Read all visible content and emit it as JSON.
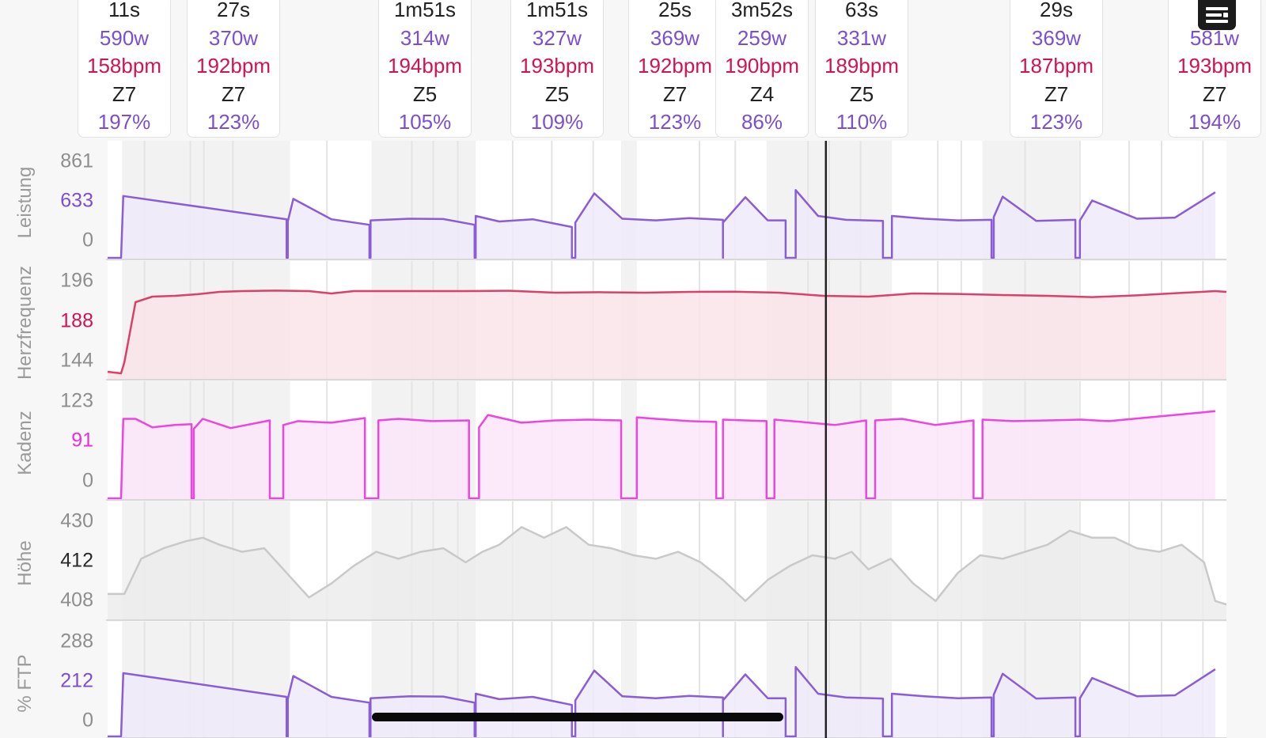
{
  "colors": {
    "power": "#8a5cd6",
    "heart_rate": "#d9406b",
    "cadence": "#ee44e0",
    "elevation": "#c9c9c9",
    "ftp": "#8a5cd6",
    "cursor": "#222222"
  },
  "interval_cards": [
    {
      "duration": "11s",
      "power": "590w",
      "heart_rate": "158bpm",
      "zone": "Z7",
      "ftp_percent": "197%"
    },
    {
      "duration": "27s",
      "power": "370w",
      "heart_rate": "192bpm",
      "zone": "Z7",
      "ftp_percent": "123%"
    },
    {
      "duration": "1m51s",
      "power": "314w",
      "heart_rate": "194bpm",
      "zone": "Z5",
      "ftp_percent": "105%"
    },
    {
      "duration": "1m51s",
      "power": "327w",
      "heart_rate": "193bpm",
      "zone": "Z5",
      "ftp_percent": "109%"
    },
    {
      "duration": "25s",
      "power": "369w",
      "heart_rate": "192bpm",
      "zone": "Z7",
      "ftp_percent": "123%"
    },
    {
      "duration": "3m52s",
      "power": "259w",
      "heart_rate": "190bpm",
      "zone": "Z4",
      "ftp_percent": "86%"
    },
    {
      "duration": "63s",
      "power": "331w",
      "heart_rate": "189bpm",
      "zone": "Z5",
      "ftp_percent": "110%"
    },
    {
      "duration": "29s",
      "power": "369w",
      "heart_rate": "187bpm",
      "zone": "Z7",
      "ftp_percent": "123%"
    },
    {
      "duration": "581w",
      "power": "",
      "heart_rate": "193bpm",
      "zone": "Z7",
      "ftp_percent": "194%"
    }
  ],
  "menu_icon": "list-menu-icon",
  "chart_data": [
    {
      "type": "area",
      "ylabel": "Leistung",
      "tick_labels": [
        "861",
        "633",
        "0"
      ],
      "ylim": [
        0,
        861
      ],
      "cursor_value": "633",
      "x_range": [
        0,
        100
      ],
      "segments": [
        {
          "x": [
            0,
            1.2,
            1.4,
            16
          ],
          "y": [
            0,
            0,
            561,
            350
          ]
        },
        {
          "x": [
            16.1,
            16.6,
            20,
            23.4
          ],
          "y": [
            330,
            535,
            350,
            300
          ]
        },
        {
          "x": [
            23.5,
            27,
            30,
            32.8
          ],
          "y": [
            340,
            355,
            352,
            300
          ]
        },
        {
          "x": [
            32.9,
            35,
            38,
            41.5
          ],
          "y": [
            380,
            330,
            350,
            280
          ]
        },
        {
          "x": [
            41.8,
            43.5,
            46,
            49,
            52,
            55
          ],
          "y": [
            320,
            585,
            355,
            340,
            360,
            345
          ]
        },
        {
          "x": [
            55,
            57,
            59,
            60.6
          ],
          "y": [
            320,
            550,
            340,
            340
          ]
        },
        {
          "x": [
            61.5,
            63.5,
            66,
            69.3
          ],
          "y": [
            615,
            380,
            345,
            335
          ]
        },
        {
          "x": [
            70.1,
            73,
            76,
            79
          ],
          "y": [
            380,
            355,
            340,
            345
          ]
        },
        {
          "x": [
            79.2,
            80,
            83,
            86.5
          ],
          "y": [
            370,
            555,
            335,
            345
          ]
        },
        {
          "x": [
            86.9,
            88,
            92,
            95.4,
            99
          ],
          "y": [
            340,
            520,
            355,
            365,
            595
          ]
        }
      ]
    },
    {
      "type": "area",
      "ylabel": "Herzfrequenz",
      "tick_labels": [
        "196",
        "188",
        "144"
      ],
      "ylim": [
        140,
        200
      ],
      "cursor_value": "188",
      "x_range": [
        0,
        100
      ],
      "x": [
        0,
        1.2,
        1.5,
        2.5,
        4,
        6,
        8,
        10,
        12,
        15,
        18,
        20,
        22,
        25,
        28,
        32,
        36,
        40,
        44,
        48,
        52,
        56,
        60,
        64,
        68,
        72,
        76,
        80,
        84,
        88,
        92,
        95,
        99,
        100
      ],
      "y": [
        144,
        143,
        150,
        188,
        191.5,
        192,
        193,
        194.5,
        195,
        195.3,
        195,
        193.5,
        195,
        195,
        195,
        195,
        195.2,
        194,
        194.3,
        194,
        194.5,
        194.6,
        194,
        192,
        191.5,
        193.5,
        193.2,
        192.5,
        192,
        191.2,
        192.3,
        193.5,
        195,
        194.5
      ]
    },
    {
      "type": "area",
      "ylabel": "Kadenz",
      "tick_labels": [
        "123",
        "91",
        "0"
      ],
      "ylim": [
        0,
        123
      ],
      "cursor_value": "91",
      "x_range": [
        0,
        100
      ],
      "segments": [
        {
          "x": [
            0,
            1.2,
            1.4,
            2.5,
            4,
            6,
            7.5
          ],
          "y": [
            0,
            0,
            103,
            103,
            92,
            95,
            96
          ]
        },
        {
          "x": [
            7.7,
            8.5,
            11,
            14.5
          ],
          "y": [
            90,
            103,
            91,
            101
          ]
        },
        {
          "x": [
            15.7,
            17,
            20,
            23
          ],
          "y": [
            95,
            100,
            98,
            104
          ]
        },
        {
          "x": [
            24.2,
            26,
            29,
            32.3
          ],
          "y": [
            101,
            103,
            100,
            101
          ]
        },
        {
          "x": [
            33.2,
            34,
            37,
            40,
            43,
            45.9
          ],
          "y": [
            92,
            108,
            98,
            101,
            102,
            101
          ]
        },
        {
          "x": [
            47.3,
            49,
            52,
            54.4
          ],
          "y": [
            105,
            103,
            100,
            99
          ]
        },
        {
          "x": [
            55,
            57,
            58.9
          ],
          "y": [
            102,
            101,
            100
          ]
        },
        {
          "x": [
            59.6,
            62,
            65,
            67.8
          ],
          "y": [
            102,
            99,
            95,
            101
          ]
        },
        {
          "x": [
            68.6,
            71,
            74,
            77.4
          ],
          "y": [
            101,
            103,
            95,
            101
          ]
        },
        {
          "x": [
            78.2,
            81,
            84,
            87,
            89.5,
            99
          ],
          "y": [
            102,
            100,
            101,
            102,
            100,
            113
          ]
        }
      ]
    },
    {
      "type": "area",
      "ylabel": "Höhe",
      "tick_labels": [
        "430",
        "412",
        "408"
      ],
      "ylim": [
        405,
        432
      ],
      "cursor_value": "412",
      "x_range": [
        0,
        100
      ],
      "x": [
        0,
        1.5,
        3,
        5,
        7,
        8.5,
        10,
        12,
        14,
        16,
        18,
        20,
        22,
        24,
        26,
        28,
        30,
        32,
        33.5,
        35,
        37,
        39,
        41,
        43,
        45,
        47,
        49,
        51,
        53,
        55,
        57,
        59,
        61,
        63,
        65,
        66.5,
        68,
        70,
        72,
        74,
        76,
        78,
        80,
        82,
        84,
        86,
        88,
        90,
        92,
        94,
        96,
        98,
        99,
        100
      ],
      "y": [
        412,
        412,
        422,
        425,
        427,
        428,
        426,
        424,
        425,
        418,
        411,
        415,
        420,
        424,
        422,
        424,
        425,
        421,
        424,
        426,
        431,
        428,
        431,
        426,
        425,
        423,
        422,
        424,
        421,
        416,
        410,
        416,
        420,
        423,
        422,
        424,
        419,
        422,
        415,
        410,
        418,
        423,
        422,
        424,
        426,
        430,
        428,
        428,
        425,
        424,
        426,
        421,
        410,
        409
      ]
    },
    {
      "type": "area",
      "ylabel": "% FTP",
      "tick_labels": [
        "288",
        "212",
        "0"
      ],
      "ylim": [
        0,
        288
      ],
      "cursor_value": "212",
      "x_range": [
        0,
        100
      ],
      "segments": [
        {
          "x": [
            0,
            1.2,
            1.4,
            16
          ],
          "y": [
            0,
            0,
            197,
            123
          ]
        },
        {
          "x": [
            16.1,
            16.6,
            20,
            23.4
          ],
          "y": [
            116,
            188,
            123,
            105
          ]
        },
        {
          "x": [
            23.5,
            27,
            30,
            32.8
          ],
          "y": [
            119,
            125,
            124,
            105
          ]
        },
        {
          "x": [
            32.9,
            35,
            38,
            41.5
          ],
          "y": [
            133,
            116,
            123,
            98
          ]
        },
        {
          "x": [
            41.8,
            43.5,
            46,
            49,
            52,
            55
          ],
          "y": [
            112,
            205,
            125,
            119,
            126,
            121
          ]
        },
        {
          "x": [
            55,
            57,
            59,
            60.6
          ],
          "y": [
            112,
            193,
            119,
            119
          ]
        },
        {
          "x": [
            61.5,
            63.5,
            66,
            69.3
          ],
          "y": [
            216,
            133,
            121,
            118
          ]
        },
        {
          "x": [
            70.1,
            73,
            76,
            79
          ],
          "y": [
            133,
            125,
            119,
            121
          ]
        },
        {
          "x": [
            79.2,
            80,
            83,
            86.5
          ],
          "y": [
            130,
            195,
            118,
            121
          ]
        },
        {
          "x": [
            86.9,
            88,
            92,
            95.4,
            99
          ],
          "y": [
            119,
            182,
            125,
            128,
            209
          ]
        }
      ]
    }
  ]
}
